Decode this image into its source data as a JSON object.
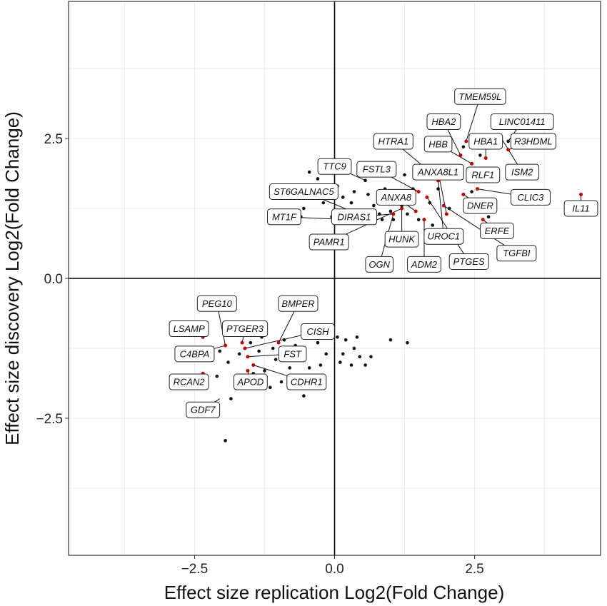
{
  "chart_data": {
    "type": "scatter",
    "xlabel": "Effect size replication Log2(Fold Change)",
    "ylabel": "Effect size discovery Log2(Fold Change)",
    "xlim": [
      -4.75,
      4.75
    ],
    "ylim": [
      -4.95,
      4.95
    ],
    "xticks": [
      {
        "v": -2.5,
        "label": "−2.5"
      },
      {
        "v": 0,
        "label": "0.0"
      },
      {
        "v": 2.5,
        "label": "2.5"
      }
    ],
    "yticks": [
      {
        "v": -2.5,
        "label": "−2.5"
      },
      {
        "v": 0,
        "label": "0.0"
      },
      {
        "v": 2.5,
        "label": "2.5"
      }
    ],
    "grid": true,
    "colors": {
      "significant": "#cc0000",
      "other": "#111111"
    },
    "points_other": [
      [
        -0.88,
        1.05
      ],
      [
        -0.55,
        1.25
      ],
      [
        -0.7,
        1.5
      ],
      [
        -0.4,
        1.6
      ],
      [
        -0.3,
        1.78
      ],
      [
        -0.1,
        1.55
      ],
      [
        0.05,
        1.65
      ],
      [
        0.15,
        1.45
      ],
      [
        0.3,
        1.35
      ],
      [
        0.5,
        1.2
      ],
      [
        0.6,
        1.5
      ],
      [
        0.7,
        1.3
      ],
      [
        0.8,
        1.15
      ],
      [
        1.0,
        1.2
      ],
      [
        1.1,
        1.45
      ],
      [
        1.2,
        1.3
      ],
      [
        1.3,
        1.15
      ],
      [
        1.4,
        1.6
      ],
      [
        0.9,
        1.6
      ],
      [
        0.25,
        1.05
      ],
      [
        0.4,
        1.0
      ],
      [
        0.0,
        1.2
      ],
      [
        -0.2,
        1.35
      ],
      [
        0.55,
        1.75
      ],
      [
        1.5,
        1.05
      ],
      [
        1.7,
        1.35
      ],
      [
        1.85,
        1.6
      ],
      [
        2.0,
        1.8
      ],
      [
        1.75,
        0.95
      ],
      [
        1.5,
        1.9
      ],
      [
        -0.45,
        1.9
      ],
      [
        0.7,
        1.9
      ],
      [
        0.85,
        1.05
      ],
      [
        1.25,
        1.85
      ],
      [
        2.05,
        1.25
      ],
      [
        0.95,
        1.35
      ],
      [
        0.35,
        1.55
      ],
      [
        -0.05,
        1.1
      ],
      [
        1.9,
        2.4
      ],
      [
        2.3,
        2.35
      ],
      [
        2.6,
        2.2
      ],
      [
        3.1,
        2.45
      ],
      [
        2.25,
        1.8
      ],
      [
        2.45,
        1.55
      ],
      [
        2.75,
        1.1
      ],
      [
        -0.6,
        1.1
      ],
      [
        0.1,
        1.15
      ],
      [
        1.05,
        1.05
      ],
      [
        -1.9,
        -1.5
      ],
      [
        -1.7,
        -1.35
      ],
      [
        -1.5,
        -1.15
      ],
      [
        -1.3,
        -1.05
      ],
      [
        -1.1,
        -1.25
      ],
      [
        -0.9,
        -1.1
      ],
      [
        -0.7,
        -1.2
      ],
      [
        -0.5,
        -1.05
      ],
      [
        -0.3,
        -1.15
      ],
      [
        -0.1,
        -1.0
      ],
      [
        0.05,
        -1.05
      ],
      [
        0.2,
        -1.1
      ],
      [
        0.35,
        -1.25
      ],
      [
        0.45,
        -1.4
      ],
      [
        0.55,
        -1.55
      ],
      [
        0.65,
        -1.4
      ],
      [
        0.3,
        -1.55
      ],
      [
        0.15,
        -1.35
      ],
      [
        -0.45,
        -1.6
      ],
      [
        -0.55,
        -2.1
      ],
      [
        -0.15,
        -1.35
      ],
      [
        -1.05,
        -1.45
      ],
      [
        -1.25,
        -1.65
      ],
      [
        -1.45,
        -1.7
      ],
      [
        -1.65,
        -1.75
      ],
      [
        -1.85,
        -2.15
      ],
      [
        -1.95,
        -2.9
      ],
      [
        -2.05,
        -1.3
      ],
      [
        -2.1,
        -1.75
      ],
      [
        -0.8,
        -1.6
      ],
      [
        -0.95,
        -1.85
      ],
      [
        -1.15,
        -1.95
      ],
      [
        1.0,
        -1.1
      ],
      [
        1.3,
        -1.15
      ],
      [
        0.1,
        -1.5
      ],
      [
        -0.25,
        -1.55
      ],
      [
        -1.35,
        -1.3
      ],
      [
        -0.65,
        -1.4
      ],
      [
        0.4,
        -1.05
      ]
    ],
    "points_significant": [
      [
        4.4,
        1.5
      ],
      [
        3.1,
        2.3
      ],
      [
        2.95,
        2.55
      ],
      [
        2.7,
        2.15
      ],
      [
        2.45,
        2.05
      ],
      [
        2.35,
        2.45
      ],
      [
        2.25,
        2.2
      ],
      [
        2.5,
        1.95
      ],
      [
        2.55,
        1.6
      ],
      [
        2.3,
        1.5
      ],
      [
        2.65,
        1.05
      ],
      [
        1.65,
        1.45
      ],
      [
        1.6,
        1.05
      ],
      [
        2.0,
        1.15
      ],
      [
        1.45,
        1.2
      ],
      [
        1.2,
        1.25
      ],
      [
        1.05,
        1.15
      ],
      [
        0.55,
        1.1
      ],
      [
        1.5,
        1.55
      ],
      [
        1.65,
        1.95
      ],
      [
        1.85,
        1.75
      ],
      [
        1.95,
        1.3
      ],
      [
        -2.35,
        -1.05
      ],
      [
        -2.35,
        -1.7
      ],
      [
        -1.95,
        -1.2
      ],
      [
        -1.65,
        -1.15
      ],
      [
        -1.55,
        -1.4
      ],
      [
        -1.45,
        -1.55
      ],
      [
        -1.3,
        -1.75
      ],
      [
        -1.55,
        -1.65
      ],
      [
        -1.0,
        -1.15
      ],
      [
        -1.6,
        -1.25
      ]
    ],
    "gene_labels": [
      {
        "name": "TMEM59L",
        "label": [
          2.6,
          3.25
        ],
        "point": [
          2.35,
          2.45
        ]
      },
      {
        "name": "HBA2",
        "label": [
          1.95,
          2.8
        ],
        "point": [
          2.25,
          2.2
        ]
      },
      {
        "name": "LINC01411",
        "label": [
          3.35,
          2.8
        ],
        "point": [
          3.1,
          2.45
        ]
      },
      {
        "name": "HTRA1",
        "label": [
          1.05,
          2.45
        ],
        "point": [
          1.65,
          1.95
        ]
      },
      {
        "name": "HBB",
        "label": [
          1.85,
          2.4
        ],
        "point": [
          2.45,
          2.05
        ]
      },
      {
        "name": "HBA1",
        "label": [
          2.7,
          2.45
        ],
        "point": [
          2.7,
          2.15
        ]
      },
      {
        "name": "R3HDML",
        "label": [
          3.55,
          2.45
        ],
        "point": [
          3.1,
          2.3
        ]
      },
      {
        "name": "TTC9",
        "label": [
          0.0,
          2.0
        ],
        "point": [
          0.55,
          1.75
        ]
      },
      {
        "name": "FSTL3",
        "label": [
          0.75,
          1.95
        ],
        "point": [
          1.5,
          1.55
        ]
      },
      {
        "name": "ANXA8L1",
        "label": [
          1.85,
          1.9
        ],
        "point": [
          2.0,
          1.15
        ]
      },
      {
        "name": "RLF1",
        "label": [
          2.65,
          1.85
        ],
        "point": [
          2.5,
          1.95
        ]
      },
      {
        "name": "ISM2",
        "label": [
          3.35,
          1.9
        ],
        "point": [
          2.95,
          2.55
        ]
      },
      {
        "name": "ST6GALNAC5",
        "label": [
          -0.55,
          1.55
        ],
        "point": [
          0.55,
          1.1
        ]
      },
      {
        "name": "ANXA8",
        "label": [
          1.1,
          1.45
        ],
        "point": [
          1.45,
          1.2
        ]
      },
      {
        "name": "CLIC3",
        "label": [
          3.5,
          1.45
        ],
        "point": [
          2.55,
          1.6
        ]
      },
      {
        "name": "DNER",
        "label": [
          2.6,
          1.3
        ],
        "point": [
          2.3,
          1.5
        ]
      },
      {
        "name": "IL11",
        "label": [
          4.4,
          1.25
        ],
        "point": [
          4.4,
          1.5
        ]
      },
      {
        "name": "MT1F",
        "label": [
          -0.9,
          1.1
        ],
        "point": [
          0.25,
          1.05
        ]
      },
      {
        "name": "DIRAS1",
        "label": [
          0.35,
          1.1
        ],
        "point": [
          1.05,
          1.15
        ]
      },
      {
        "name": "PAMR1",
        "label": [
          -0.1,
          0.65
        ],
        "point": [
          1.2,
          1.25
        ]
      },
      {
        "name": "HUNK",
        "label": [
          1.2,
          0.7
        ],
        "point": [
          1.2,
          1.25
        ]
      },
      {
        "name": "UROC1",
        "label": [
          1.95,
          0.75
        ],
        "point": [
          1.85,
          1.75
        ]
      },
      {
        "name": "ERFE",
        "label": [
          2.9,
          0.85
        ],
        "point": [
          2.65,
          1.05
        ]
      },
      {
        "name": "TGFBI",
        "label": [
          3.25,
          0.45
        ],
        "point": [
          1.95,
          1.3
        ]
      },
      {
        "name": "OGN",
        "label": [
          0.8,
          0.25
        ],
        "point": [
          1.05,
          1.15
        ]
      },
      {
        "name": "ADM2",
        "label": [
          1.6,
          0.25
        ],
        "point": [
          1.6,
          1.05
        ]
      },
      {
        "name": "PTGES",
        "label": [
          2.4,
          0.3
        ],
        "point": [
          1.65,
          1.45
        ]
      },
      {
        "name": "PEG10",
        "label": [
          -2.1,
          -0.45
        ],
        "point": [
          -1.95,
          -1.2
        ]
      },
      {
        "name": "BMPER",
        "label": [
          -0.65,
          -0.45
        ],
        "point": [
          -1.0,
          -1.15
        ]
      },
      {
        "name": "LSAMP",
        "label": [
          -2.6,
          -0.9
        ],
        "point": [
          -2.35,
          -1.05
        ]
      },
      {
        "name": "PTGER3",
        "label": [
          -1.6,
          -0.9
        ],
        "point": [
          -1.65,
          -1.15
        ]
      },
      {
        "name": "CISH",
        "label": [
          -0.3,
          -0.95
        ],
        "point": [
          -1.6,
          -1.25
        ]
      },
      {
        "name": "C4BPA",
        "label": [
          -2.5,
          -1.35
        ],
        "point": [
          -1.95,
          -1.2
        ]
      },
      {
        "name": "FST",
        "label": [
          -0.75,
          -1.35
        ],
        "point": [
          -1.55,
          -1.4
        ]
      },
      {
        "name": "RCAN2",
        "label": [
          -2.6,
          -1.85
        ],
        "point": [
          -2.35,
          -1.7
        ]
      },
      {
        "name": "APOD",
        "label": [
          -1.5,
          -1.85
        ],
        "point": [
          -1.55,
          -1.65
        ]
      },
      {
        "name": "CDHR1",
        "label": [
          -0.5,
          -1.85
        ],
        "point": [
          -1.45,
          -1.55
        ]
      },
      {
        "name": "GDF7",
        "label": [
          -2.35,
          -2.35
        ],
        "point": [
          -2.05,
          -2.15
        ]
      }
    ]
  }
}
